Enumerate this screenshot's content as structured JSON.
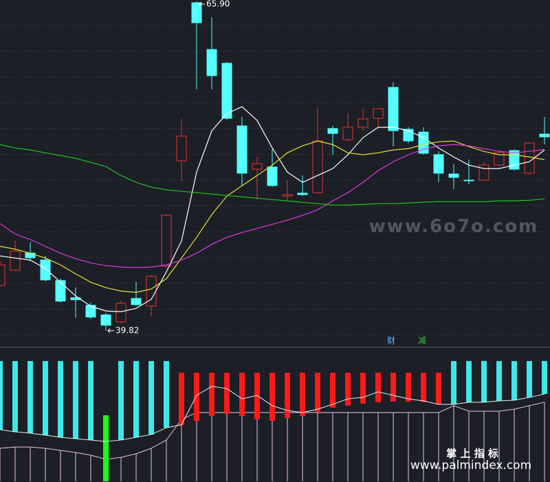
{
  "chart_data": [
    {
      "type": "candlestick",
      "ylim": [
        38.78,
        66.01
      ],
      "up_color": "#e8372f",
      "down_color": "#54ffff",
      "open": [
        43.41,
        44.61,
        45.97,
        45.42,
        43.79,
        42.43,
        41.83,
        41.07,
        40.52,
        42.37,
        41.77,
        44.93,
        53.27,
        65.79,
        62.09,
        61.0,
        56.04,
        52.61,
        52.78,
        50.49,
        50.71,
        50.76,
        55.83,
        54.95,
        55.94,
        56.64,
        59.09,
        55.77,
        55.55,
        53.76,
        52.23,
        51.74,
        51.74,
        52.94,
        54.08,
        52.29,
        55.39
      ],
      "high": [
        45.32,
        46.95,
        46.84,
        45.75,
        43.95,
        43.25,
        42.05,
        41.23,
        42.21,
        43.68,
        44.23,
        49.07,
        56.59,
        65.9,
        64.65,
        61.11,
        56.75,
        53.59,
        54.19,
        51.74,
        52.12,
        57.46,
        56.04,
        57.02,
        57.41,
        57.45,
        59.48,
        55.94,
        55.94,
        54.03,
        53.05,
        53.38,
        53.21,
        54.14,
        54.19,
        54.79,
        56.75
      ],
      "low": [
        43.3,
        44.5,
        45.32,
        43.74,
        42.05,
        40.85,
        40.74,
        39.82,
        40.41,
        41.77,
        40.96,
        44.77,
        51.63,
        58.93,
        58.93,
        56.53,
        51.31,
        50.22,
        51.2,
        50.11,
        50.49,
        50.65,
        53.76,
        54.85,
        55.66,
        55.94,
        54.41,
        54.68,
        53.76,
        51.58,
        51.03,
        51.42,
        51.69,
        52.83,
        52.5,
        52.18,
        54.57
      ],
      "close": [
        45.04,
        46.13,
        45.59,
        43.84,
        42.16,
        42.27,
        40.9,
        40.25,
        41.99,
        41.88,
        44.12,
        48.96,
        55.23,
        64.21,
        60.02,
        56.64,
        52.29,
        53.05,
        51.31,
        50.6,
        50.6,
        54.85,
        55.44,
        55.94,
        56.59,
        57.41,
        55.66,
        54.85,
        53.87,
        52.29,
        51.96,
        51.69,
        52.94,
        53.92,
        52.61,
        54.68,
        55.17
      ],
      "lines": [
        {
          "color": "#ffffff",
          "values": [
            45.74,
            45.57,
            45.41,
            44.75,
            43.66,
            42.57,
            41.76,
            41.38,
            41.32,
            41.59,
            42.3,
            44.48,
            46.93,
            52.38,
            55.65,
            57.02,
            57.56,
            56.47,
            54.29,
            52.38,
            51.57,
            52.11,
            52.66,
            53.75,
            55.11,
            55.93,
            55.93,
            55.65,
            55.11,
            54.29,
            53.58,
            52.93,
            52.66,
            52.66,
            52.93,
            53.2,
            54.13
          ]
        },
        {
          "color": "#e6e633",
          "values": [
            46.5,
            46.28,
            45.95,
            45.57,
            45.03,
            44.32,
            43.66,
            43.23,
            42.96,
            42.85,
            43.12,
            43.94,
            45.57,
            47.21,
            49.01,
            50.48,
            51.3,
            52.11,
            52.93,
            53.91,
            54.46,
            54.84,
            54.56,
            53.91,
            53.75,
            53.91,
            54.13,
            54.24,
            54.56,
            54.78,
            54.84,
            54.4,
            54.02,
            53.75,
            53.75,
            53.58,
            53.37
          ]
        },
        {
          "color": "#e13be1",
          "values": [
            48.3,
            47.48,
            47.04,
            46.5,
            45.95,
            45.52,
            45.19,
            44.97,
            44.86,
            44.81,
            44.86,
            45.03,
            45.41,
            45.95,
            46.66,
            47.21,
            47.59,
            47.92,
            48.24,
            48.57,
            48.95,
            49.39,
            50.1,
            50.75,
            51.57,
            52.49,
            53.2,
            53.75,
            54.18,
            54.46,
            54.56,
            54.46,
            54.24,
            54.02,
            53.91,
            54.02,
            54.18
          ]
        },
        {
          "color": "#22c322",
          "values": [
            54.56,
            54.29,
            54.13,
            53.91,
            53.69,
            53.47,
            53.15,
            52.82,
            52.11,
            51.57,
            51.19,
            50.97,
            50.86,
            50.75,
            50.64,
            50.53,
            50.42,
            50.31,
            50.2,
            50.1,
            49.99,
            49.88,
            49.77,
            49.77,
            49.82,
            49.88,
            49.88,
            49.93,
            49.99,
            50.04,
            50.04,
            50.04,
            50.04,
            50.1,
            50.1,
            50.15,
            50.26
          ]
        }
      ],
      "annotations": [
        {
          "value": 65.9,
          "label": "65.90"
        },
        {
          "value": 39.82,
          "label": "39.82"
        }
      ]
    },
    {
      "type": "indicator",
      "ylim": [
        0,
        100
      ],
      "bars": [
        {
          "color": "#3de8ea",
          "high": [
            89.7,
            89.7,
            89.7,
            89.7,
            89.7,
            89.7,
            89.7,
            null,
            89.7,
            89.7,
            89.7,
            89.7,
            null,
            null,
            null,
            null,
            null,
            null,
            null,
            null,
            null,
            null,
            null,
            null,
            null,
            null,
            null,
            null,
            null,
            null,
            89.7,
            89.7,
            89.7,
            89.7,
            89.7,
            89.7,
            89.7
          ],
          "low": [
            38.5,
            36.9,
            35.9,
            34.4,
            32.8,
            31.8,
            30.8,
            null,
            30.8,
            32.8,
            34.9,
            40.0,
            null,
            null,
            null,
            null,
            null,
            null,
            null,
            null,
            null,
            null,
            null,
            null,
            null,
            null,
            null,
            null,
            null,
            null,
            57.4,
            59.0,
            59.0,
            60.0,
            60.5,
            62.6,
            65.1
          ]
        },
        {
          "color": "#ff1a1a",
          "high": [
            null,
            null,
            null,
            null,
            null,
            null,
            null,
            null,
            null,
            null,
            null,
            null,
            81.0,
            81.0,
            81.0,
            81.0,
            81.0,
            81.0,
            81.0,
            81.0,
            81.0,
            81.0,
            81.0,
            81.0,
            81.0,
            81.0,
            81.0,
            81.0,
            81.0,
            81.0,
            null,
            null,
            null,
            null,
            null,
            null,
            null
          ],
          "low": [
            null,
            null,
            null,
            null,
            null,
            null,
            null,
            null,
            null,
            null,
            null,
            null,
            42.1,
            45.1,
            48.7,
            50.3,
            48.7,
            46.2,
            45.1,
            47.2,
            48.7,
            51.3,
            54.9,
            56.4,
            57.9,
            59.0,
            59.5,
            59.5,
            59.0,
            57.4,
            null,
            null,
            null,
            null,
            null,
            null,
            null
          ]
        },
        {
          "color": "#1aff1a",
          "high": [
            null,
            null,
            null,
            null,
            null,
            null,
            null,
            49.2,
            null,
            null,
            null,
            null,
            null,
            null,
            null,
            null,
            null,
            null,
            null,
            null,
            null,
            null,
            null,
            null,
            null,
            null,
            null,
            null,
            null,
            null,
            null,
            null,
            null,
            null,
            null,
            null,
            null
          ],
          "low": [
            null,
            null,
            null,
            null,
            null,
            null,
            null,
            0,
            null,
            null,
            null,
            null,
            null,
            null,
            null,
            null,
            null,
            null,
            null,
            null,
            null,
            null,
            null,
            null,
            null,
            null,
            null,
            null,
            null,
            null,
            null,
            null,
            null,
            null,
            null,
            null,
            null
          ]
        }
      ],
      "lines": [
        {
          "color": "#e9c4e9",
          "values": [
            24.6,
            25.6,
            25.6,
            24.6,
            23.1,
            21.5,
            19.5,
            16.4,
            17.9,
            20.5,
            24.6,
            30.8,
            46.2,
            51.3,
            51.3,
            51.3,
            51.3,
            51.3,
            51.3,
            51.3,
            51.3,
            51.3,
            51.3,
            51.3,
            51.3,
            51.3,
            51.3,
            51.3,
            51.3,
            51.3,
            56.4,
            52.3,
            52.3,
            52.3,
            53.8,
            56.4,
            59.0
          ],
          "drops": true
        },
        {
          "color": "#dff4f4",
          "values": [
            38.5,
            36.9,
            35.9,
            34.4,
            32.8,
            31.8,
            30.8,
            29.7,
            30.8,
            32.8,
            34.9,
            40.0,
            42.1,
            64.1,
            70.8,
            69.2,
            61.5,
            64.1,
            56.4,
            52.8,
            51.3,
            53.8,
            57.4,
            61.5,
            62.6,
            66.7,
            64.1,
            61.5,
            60.0,
            57.4,
            57.4,
            59.0,
            59.0,
            60.0,
            60.5,
            62.6,
            65.1
          ],
          "drops": false
        }
      ]
    }
  ],
  "signal_labels": [
    "财",
    "减"
  ],
  "watermark": "www.6o7o.com",
  "brand": {
    "title": "掌 上 指 标",
    "url": "www.palmindex.com"
  }
}
